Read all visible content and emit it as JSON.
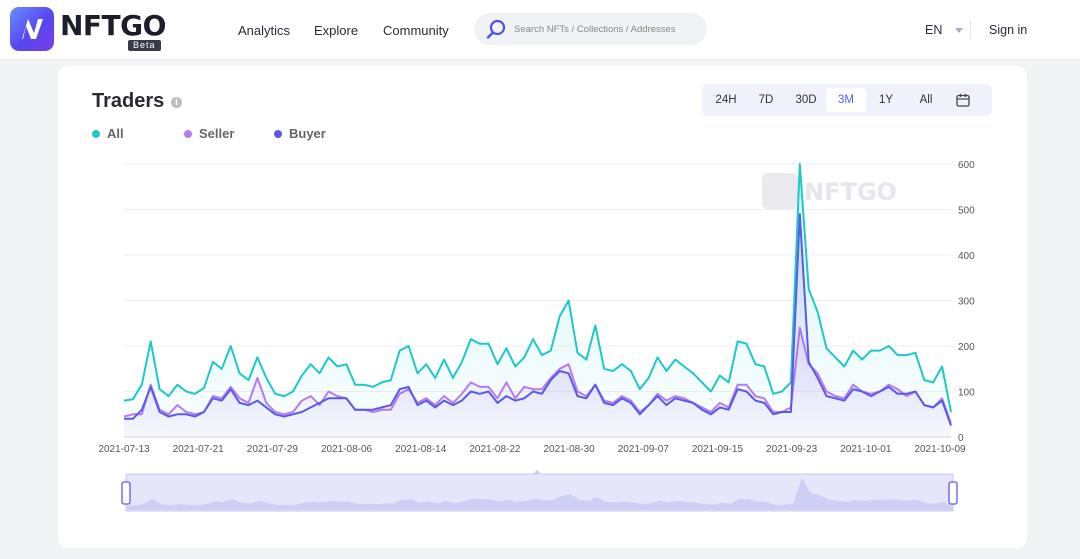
{
  "brand": {
    "name": "NFTGO",
    "badge": "Beta",
    "watermark": "NFTGO"
  },
  "nav": {
    "analytics": "Analytics",
    "explore": "Explore",
    "community": "Community"
  },
  "search": {
    "placeholder": "Search NFTs / Collections / Addresses"
  },
  "header": {
    "language": "EN",
    "sign_in": "Sign in"
  },
  "card": {
    "title": "Traders",
    "ranges": [
      "24H",
      "7D",
      "30D",
      "3M",
      "1Y",
      "All"
    ],
    "active_range": "3M"
  },
  "colors": {
    "all": "#1ec8c8",
    "seller": "#b57bf0",
    "buyer": "#5a5ae6",
    "accent": "#5a5af0"
  },
  "chart_data": {
    "type": "line",
    "title": "",
    "xlabel": "",
    "ylabel": "",
    "x_start": "2021-07-13",
    "x_ticks": [
      "2021-07-13",
      "2021-07-21",
      "2021-07-29",
      "2021-08-06",
      "2021-08-14",
      "2021-08-22",
      "2021-08-30",
      "2021-09-07",
      "2021-09-15",
      "2021-09-23",
      "2021-10-01",
      "2021-10-09"
    ],
    "y_ticks": [
      0,
      100,
      200,
      300,
      400,
      500,
      600
    ],
    "ylim": [
      0,
      600
    ],
    "y_axis_side": "right",
    "legend_position": "top-left",
    "series": [
      {
        "name": "All",
        "values": [
          80,
          83,
          115,
          210,
          105,
          90,
          115,
          100,
          95,
          108,
          165,
          150,
          200,
          140,
          125,
          175,
          130,
          95,
          90,
          100,
          135,
          160,
          140,
          175,
          155,
          160,
          115,
          115,
          110,
          120,
          125,
          190,
          200,
          140,
          160,
          130,
          170,
          130,
          165,
          215,
          205,
          205,
          160,
          195,
          155,
          175,
          215,
          180,
          190,
          265,
          300,
          185,
          170,
          245,
          150,
          145,
          160,
          145,
          105,
          130,
          175,
          145,
          170,
          155,
          140,
          120,
          100,
          135,
          120,
          210,
          205,
          160,
          155,
          95,
          100,
          120,
          600,
          325,
          275,
          195,
          175,
          155,
          190,
          170,
          190,
          190,
          200,
          180,
          180,
          185,
          125,
          120,
          155,
          55
        ]
      },
      {
        "name": "Seller",
        "values": [
          45,
          50,
          50,
          115,
          60,
          50,
          70,
          55,
          50,
          55,
          90,
          85,
          110,
          85,
          75,
          130,
          75,
          55,
          50,
          55,
          80,
          90,
          70,
          100,
          90,
          85,
          60,
          60,
          55,
          60,
          60,
          95,
          105,
          75,
          85,
          70,
          90,
          75,
          95,
          120,
          110,
          110,
          85,
          120,
          85,
          110,
          105,
          105,
          130,
          150,
          160,
          100,
          90,
          115,
          80,
          75,
          90,
          80,
          55,
          70,
          95,
          80,
          90,
          85,
          75,
          65,
          55,
          75,
          65,
          115,
          115,
          90,
          85,
          55,
          55,
          65,
          240,
          160,
          140,
          100,
          90,
          85,
          115,
          100,
          95,
          100,
          115,
          105,
          90,
          100,
          70,
          65,
          85,
          30
        ]
      },
      {
        "name": "Buyer",
        "values": [
          40,
          40,
          60,
          110,
          55,
          45,
          50,
          50,
          45,
          55,
          85,
          80,
          105,
          75,
          70,
          80,
          65,
          50,
          45,
          50,
          55,
          65,
          75,
          85,
          85,
          85,
          60,
          60,
          60,
          65,
          70,
          105,
          110,
          70,
          80,
          65,
          80,
          70,
          80,
          100,
          95,
          100,
          75,
          90,
          80,
          85,
          100,
          95,
          125,
          145,
          140,
          90,
          85,
          115,
          75,
          70,
          85,
          75,
          50,
          70,
          90,
          70,
          85,
          80,
          75,
          60,
          50,
          65,
          60,
          105,
          100,
          80,
          75,
          50,
          55,
          55,
          490,
          165,
          130,
          90,
          85,
          80,
          105,
          100,
          90,
          100,
          110,
          95,
          95,
          100,
          70,
          65,
          80,
          25
        ]
      }
    ]
  }
}
